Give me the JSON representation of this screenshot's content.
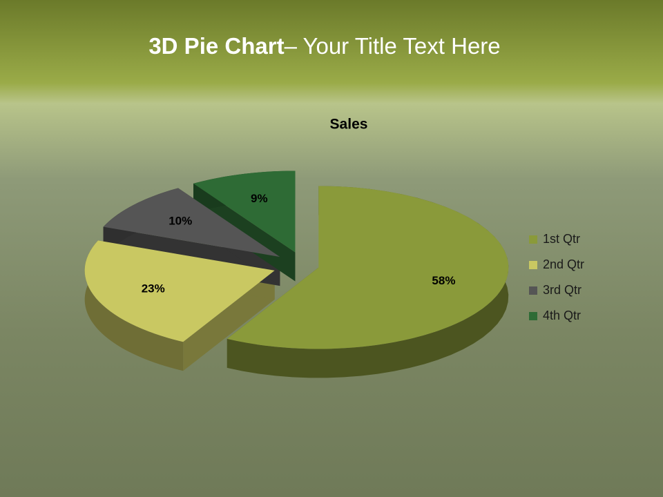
{
  "slide": {
    "title_bold": "3D Pie Chart",
    "title_rest": "– Your Title Text Here"
  },
  "chart_data": {
    "type": "pie",
    "title": "Sales",
    "categories": [
      "1st Qtr",
      "2nd Qtr",
      "3rd Qtr",
      "4th Qtr"
    ],
    "values": [
      58,
      23,
      10,
      9
    ],
    "value_labels": [
      "58%",
      "23%",
      "10%",
      "9%"
    ],
    "colors": [
      "#8a9a3a",
      "#c9c862",
      "#555555",
      "#2e6b35"
    ],
    "legend": "right"
  }
}
